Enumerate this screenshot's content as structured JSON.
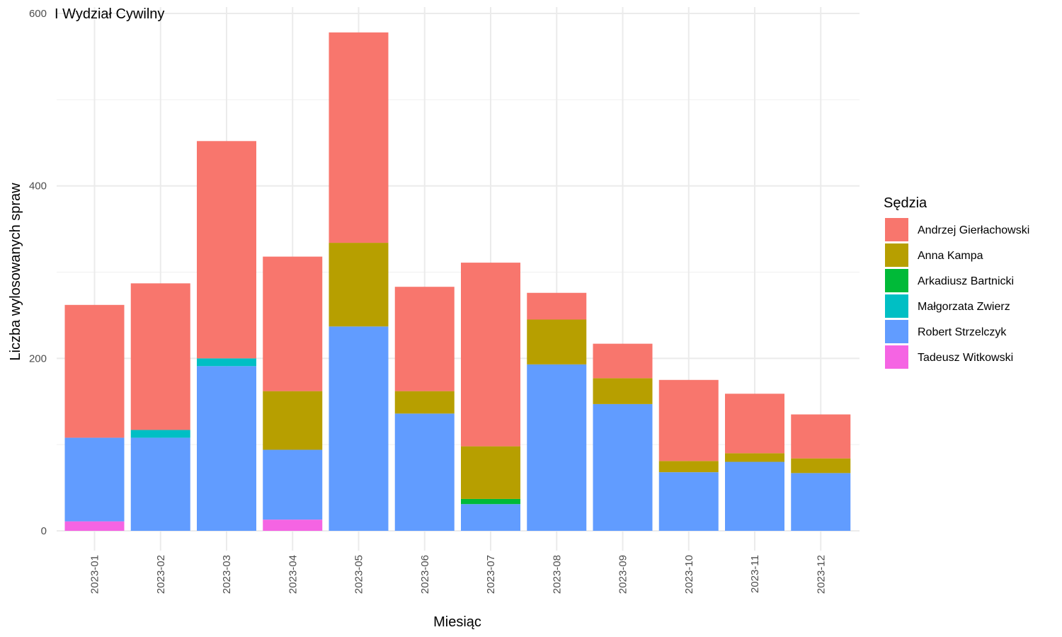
{
  "chart_data": {
    "type": "bar",
    "stacked": true,
    "title": "I Wydział Cywilny",
    "xlabel": "Miesiąc",
    "ylabel": "Liczba wylosowanych spraw",
    "ylim": [
      0,
      600
    ],
    "yticks": [
      0,
      200,
      400,
      600
    ],
    "grid": true,
    "legend_title": "Sędzia",
    "legend_position": "right",
    "categories": [
      "2023-01",
      "2023-02",
      "2023-03",
      "2023-04",
      "2023-05",
      "2023-06",
      "2023-07",
      "2023-08",
      "2023-09",
      "2023-10",
      "2023-11",
      "2023-12"
    ],
    "stack_order": [
      "Tadeusz Witkowski",
      "Robert Strzelczyk",
      "Małgorzata Zwierz",
      "Arkadiusz Bartnicki",
      "Anna Kampa",
      "Andrzej Gierłachowski"
    ],
    "series": [
      {
        "name": "Andrzej Gierłachowski",
        "color": "#F8766D",
        "values": [
          154,
          170,
          252,
          156,
          244,
          121,
          213,
          31,
          40,
          94,
          69,
          51
        ]
      },
      {
        "name": "Anna Kampa",
        "color": "#B79F00",
        "values": [
          0,
          0,
          0,
          68,
          97,
          26,
          61,
          52,
          30,
          13,
          10,
          17
        ]
      },
      {
        "name": "Arkadiusz Bartnicki",
        "color": "#00BA38",
        "values": [
          0,
          0,
          0,
          0,
          0,
          0,
          6,
          0,
          0,
          0,
          0,
          0
        ]
      },
      {
        "name": "Małgorzata Zwierz",
        "color": "#00BFC4",
        "values": [
          0,
          9,
          9,
          0,
          0,
          0,
          0,
          0,
          0,
          0,
          0,
          0
        ]
      },
      {
        "name": "Robert Strzelczyk",
        "color": "#619CFF",
        "values": [
          97,
          108,
          191,
          81,
          237,
          136,
          31,
          193,
          147,
          68,
          80,
          67
        ]
      },
      {
        "name": "Tadeusz Witkowski",
        "color": "#F564E3",
        "values": [
          11,
          0,
          0,
          13,
          0,
          0,
          0,
          0,
          0,
          0,
          0,
          0
        ]
      }
    ]
  }
}
